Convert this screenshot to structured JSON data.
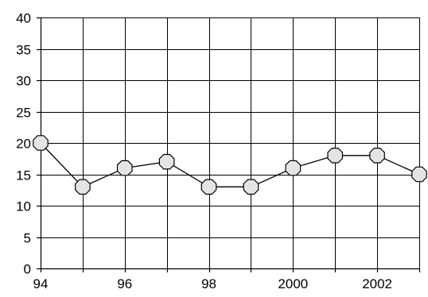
{
  "chart_data": {
    "type": "line",
    "title": "",
    "xlabel": "",
    "ylabel": "",
    "x": [
      1994,
      1995,
      1996,
      1997,
      1998,
      1999,
      2000,
      2001,
      2002,
      2003
    ],
    "series": [
      {
        "values": [
          20,
          13,
          16,
          17,
          13,
          13,
          16,
          18,
          18,
          15
        ]
      }
    ],
    "xlim": [
      1994,
      2003
    ],
    "ylim": [
      0,
      40
    ],
    "y_ticks": [
      "0",
      "5",
      "10",
      "15",
      "20",
      "25",
      "30",
      "35",
      "40"
    ],
    "x_ticks": [
      {
        "x": 1994,
        "label": "94"
      },
      {
        "x": 1996,
        "label": "96"
      },
      {
        "x": 1998,
        "label": "98"
      },
      {
        "x": 2000,
        "label": "2000"
      },
      {
        "x": 2002,
        "label": "2002"
      }
    ],
    "grid": true,
    "legend": "none",
    "marker": "octagon",
    "colors": {
      "line": "#000000",
      "marker_fill": "#e4e4e4",
      "grid": "#000000"
    }
  }
}
